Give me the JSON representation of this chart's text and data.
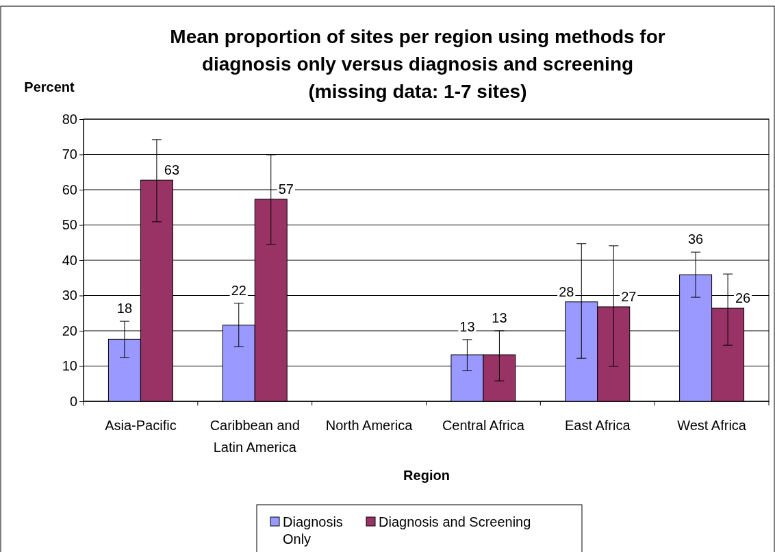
{
  "chart_data": {
    "type": "bar",
    "title": "Mean proportion of sites per region using methods for diagnosis only versus diagnosis and screening (missing data: 1-7 sites)",
    "xlabel": "Region",
    "ylabel": "Percent",
    "categories": [
      "Asia-Pacific",
      "Caribbean and Latin America",
      "North America",
      "Central Africa",
      "East Africa",
      "West Africa"
    ],
    "series": [
      {
        "name": "Diagnosis Only",
        "color": "#9999ff",
        "values": [
          17.6,
          21.6,
          null,
          13.2,
          28.2,
          35.9
        ],
        "errors": [
          [
            12.4,
            22.7
          ],
          [
            15.5,
            27.8
          ],
          null,
          [
            8.7,
            17.5
          ],
          [
            12.2,
            44.7
          ],
          [
            29.5,
            42.3
          ]
        ],
        "value_labels": [
          "18",
          "22",
          null,
          "13",
          "28",
          "36"
        ]
      },
      {
        "name": "Diagnosis and Screening",
        "color": "#993366",
        "values": [
          62.7,
          57.3,
          null,
          13.2,
          26.8,
          26.4
        ],
        "errors": [
          [
            50.9,
            74.2
          ],
          [
            44.5,
            69.9
          ],
          null,
          [
            5.8,
            20
          ],
          [
            9.9,
            44.1
          ],
          [
            15.9,
            36.1
          ]
        ],
        "value_labels": [
          "63",
          "57",
          null,
          "13",
          "27",
          "26"
        ]
      }
    ],
    "ylim": [
      0,
      80
    ],
    "yticks": [
      0,
      10,
      20,
      30,
      40,
      50,
      60,
      70,
      80
    ],
    "grid": "y",
    "legend": "bottom"
  }
}
